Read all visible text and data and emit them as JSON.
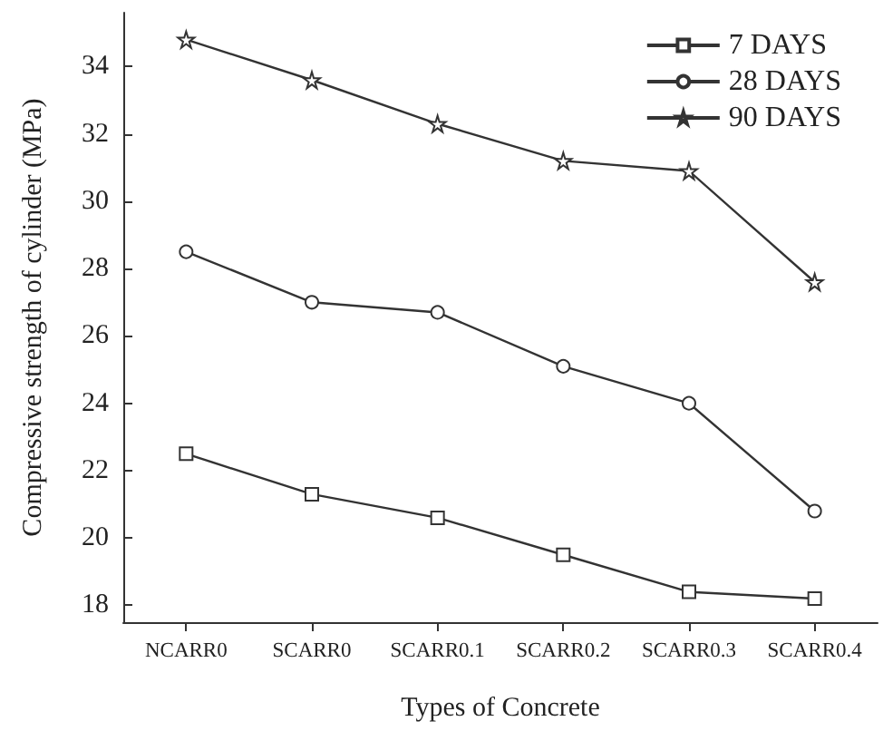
{
  "chart_data": {
    "type": "line",
    "xlabel": "Types of Concrete",
    "ylabel": "Compressive strength of cylinder (MPa)",
    "categories": [
      "NCARR0",
      "SCARR0",
      "SCARR0.1",
      "SCARR0.2",
      "SCARR0.3",
      "SCARR0.4"
    ],
    "series": [
      {
        "name": "7 DAYS",
        "color": "#333333",
        "marker": "square",
        "values": [
          22.5,
          21.3,
          20.6,
          19.5,
          18.4,
          18.2
        ]
      },
      {
        "name": "28 DAYS",
        "color": "#333333",
        "marker": "circle",
        "values": [
          28.5,
          27.0,
          26.7,
          25.1,
          24.0,
          20.8
        ]
      },
      {
        "name": "90 DAYS",
        "color": "#333333",
        "marker": "star",
        "values": [
          34.8,
          33.6,
          32.3,
          31.2,
          30.9,
          27.6
        ]
      }
    ],
    "ylim": [
      17.5,
      35.6
    ],
    "yticks": [
      18,
      20,
      22,
      24,
      26,
      28,
      30,
      32,
      34
    ],
    "grid": false,
    "legend": "top right"
  }
}
